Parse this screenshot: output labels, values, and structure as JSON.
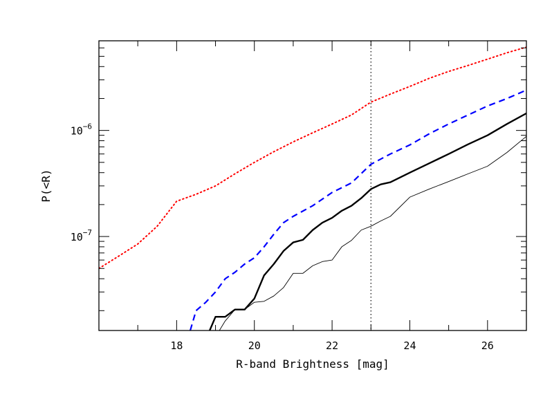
{
  "chart_data": {
    "type": "line",
    "title": "",
    "xlabel": "R-band Brightness [mag]",
    "ylabel": "P(<R)",
    "xlim": [
      16,
      27
    ],
    "ylim": [
      1.3e-08,
      7e-06
    ],
    "yscale": "log",
    "grid": false,
    "legend": "none",
    "x_ticks": [
      {
        "value": 18,
        "label": "18"
      },
      {
        "value": 20,
        "label": "20"
      },
      {
        "value": 22,
        "label": "22"
      },
      {
        "value": 24,
        "label": "24"
      },
      {
        "value": 26,
        "label": "26"
      }
    ],
    "y_ticks": [
      {
        "value": 1e-07,
        "base": "10",
        "exp": "−7"
      },
      {
        "value": 1e-06,
        "base": "10",
        "exp": "−6"
      }
    ],
    "reference_lines": [
      {
        "axis": "x",
        "value": 23.0,
        "style": "dotted",
        "color": "#000000"
      }
    ],
    "series": [
      {
        "style": "dotted",
        "color": "#ff0000",
        "width": 2,
        "points": [
          [
            16.0,
            5e-08
          ],
          [
            16.5,
            6.5e-08
          ],
          [
            17.0,
            8.5e-08
          ],
          [
            17.5,
            1.25e-07
          ],
          [
            18.0,
            2.15e-07
          ],
          [
            18.5,
            2.5e-07
          ],
          [
            19.0,
            3e-07
          ],
          [
            19.5,
            3.9e-07
          ],
          [
            20.0,
            5e-07
          ],
          [
            20.5,
            6.3e-07
          ],
          [
            21.0,
            7.8e-07
          ],
          [
            21.5,
            9.5e-07
          ],
          [
            22.0,
            1.15e-06
          ],
          [
            22.5,
            1.4e-06
          ],
          [
            23.0,
            1.85e-06
          ],
          [
            23.5,
            2.2e-06
          ],
          [
            24.0,
            2.6e-06
          ],
          [
            24.5,
            3.1e-06
          ],
          [
            25.0,
            3.6e-06
          ],
          [
            25.5,
            4.1e-06
          ],
          [
            26.0,
            4.7e-06
          ],
          [
            26.5,
            5.4e-06
          ],
          [
            27.0,
            6.1e-06
          ]
        ]
      },
      {
        "style": "dashed",
        "color": "#0000ff",
        "width": 2.2,
        "points": [
          [
            18.35,
            1.3e-08
          ],
          [
            18.5,
            2e-08
          ],
          [
            18.75,
            2.4e-08
          ],
          [
            19.0,
            3e-08
          ],
          [
            19.25,
            4e-08
          ],
          [
            19.5,
            4.6e-08
          ],
          [
            19.75,
            5.5e-08
          ],
          [
            20.0,
            6.3e-08
          ],
          [
            20.25,
            8e-08
          ],
          [
            20.5,
            1.05e-07
          ],
          [
            20.75,
            1.35e-07
          ],
          [
            21.0,
            1.55e-07
          ],
          [
            21.5,
            1.95e-07
          ],
          [
            22.0,
            2.6e-07
          ],
          [
            22.5,
            3.2e-07
          ],
          [
            23.0,
            4.8e-07
          ],
          [
            23.5,
            6e-07
          ],
          [
            24.0,
            7.3e-07
          ],
          [
            24.5,
            9.3e-07
          ],
          [
            25.0,
            1.15e-06
          ],
          [
            25.5,
            1.4e-06
          ],
          [
            26.0,
            1.7e-06
          ],
          [
            26.5,
            2e-06
          ],
          [
            27.0,
            2.4e-06
          ]
        ]
      },
      {
        "style": "solid",
        "color": "#000000",
        "width": 2.4,
        "points": [
          [
            18.85,
            1.3e-08
          ],
          [
            19.0,
            1.75e-08
          ],
          [
            19.25,
            1.75e-08
          ],
          [
            19.5,
            2.05e-08
          ],
          [
            19.75,
            2.05e-08
          ],
          [
            20.0,
            2.6e-08
          ],
          [
            20.25,
            4.3e-08
          ],
          [
            20.5,
            5.5e-08
          ],
          [
            20.75,
            7.3e-08
          ],
          [
            21.0,
            8.8e-08
          ],
          [
            21.25,
            9.3e-08
          ],
          [
            21.5,
            1.15e-07
          ],
          [
            21.75,
            1.35e-07
          ],
          [
            22.0,
            1.5e-07
          ],
          [
            22.25,
            1.75e-07
          ],
          [
            22.5,
            1.95e-07
          ],
          [
            22.75,
            2.3e-07
          ],
          [
            23.0,
            2.8e-07
          ],
          [
            23.25,
            3.1e-07
          ],
          [
            23.5,
            3.25e-07
          ],
          [
            24.0,
            4e-07
          ],
          [
            24.5,
            4.9e-07
          ],
          [
            25.0,
            6e-07
          ],
          [
            25.5,
            7.4e-07
          ],
          [
            26.0,
            9e-07
          ],
          [
            26.5,
            1.15e-06
          ],
          [
            27.0,
            1.45e-06
          ]
        ]
      },
      {
        "style": "solid",
        "color": "#000000",
        "width": 0.9,
        "points": [
          [
            19.1,
            1.3e-08
          ],
          [
            19.25,
            1.6e-08
          ],
          [
            19.5,
            2.05e-08
          ],
          [
            19.75,
            2.05e-08
          ],
          [
            20.0,
            2.4e-08
          ],
          [
            20.25,
            2.45e-08
          ],
          [
            20.5,
            2.75e-08
          ],
          [
            20.75,
            3.3e-08
          ],
          [
            21.0,
            4.5e-08
          ],
          [
            21.25,
            4.5e-08
          ],
          [
            21.5,
            5.3e-08
          ],
          [
            21.75,
            5.8e-08
          ],
          [
            22.0,
            6e-08
          ],
          [
            22.25,
            8e-08
          ],
          [
            22.5,
            9.2e-08
          ],
          [
            22.75,
            1.15e-07
          ],
          [
            23.0,
            1.25e-07
          ],
          [
            23.25,
            1.4e-07
          ],
          [
            23.5,
            1.55e-07
          ],
          [
            24.0,
            2.35e-07
          ],
          [
            24.5,
            2.8e-07
          ],
          [
            25.0,
            3.3e-07
          ],
          [
            25.5,
            3.9e-07
          ],
          [
            26.0,
            4.6e-07
          ],
          [
            26.5,
            6.2e-07
          ],
          [
            27.0,
            8.8e-07
          ]
        ]
      }
    ]
  }
}
